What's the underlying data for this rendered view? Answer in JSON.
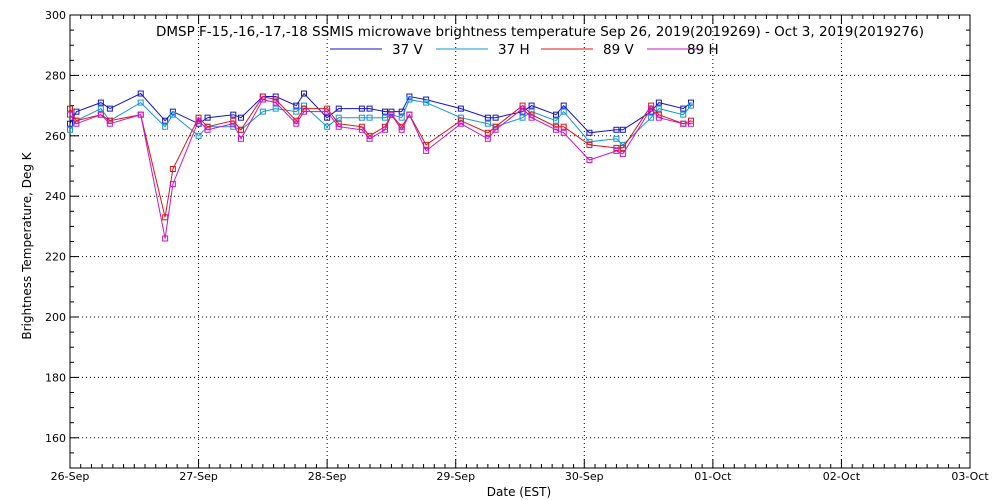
{
  "chart_data": {
    "type": "line",
    "title": "DMSP F-15,-16,-17,-18 SSMIS microwave brightness temperature Sep 26, 2019(2019269) - Oct  3, 2019(2019276)",
    "xlabel": "Date (EST)",
    "ylabel": "Brightness Temperature, Deg K",
    "xlim": [
      0,
      7
    ],
    "ylim": [
      150,
      300
    ],
    "xtick_values": [
      0,
      1,
      2,
      3,
      4,
      5,
      6,
      7
    ],
    "xtick_labels": [
      "26-Sep",
      "27-Sep",
      "28-Sep",
      "29-Sep",
      "30-Sep",
      "01-Oct",
      "02-Oct",
      "03-Oct"
    ],
    "yticks": [
      160,
      180,
      200,
      220,
      240,
      260,
      280,
      300
    ],
    "grid": true,
    "legend_position": "top-center",
    "x_units": "days since 26-Sep 00:00 EST",
    "series": [
      {
        "name": "37 V",
        "color": "#1414c8",
        "x": [
          0.0,
          0.05,
          0.24,
          0.31,
          0.55,
          0.74,
          0.8,
          1.0,
          1.07,
          1.27,
          1.33,
          1.5,
          1.6,
          1.76,
          1.82,
          2.0,
          2.09,
          2.27,
          2.33,
          2.45,
          2.5,
          2.58,
          2.64,
          2.77,
          3.04,
          3.25,
          3.31,
          3.52,
          3.59,
          3.78,
          3.84,
          4.04,
          4.25,
          4.3,
          4.52,
          4.58,
          4.77,
          4.83
        ],
        "y": [
          264,
          268,
          271,
          269,
          274,
          265,
          268,
          264,
          266,
          267,
          266,
          273,
          273,
          270,
          274,
          266,
          269,
          269,
          269,
          268,
          268,
          268,
          273,
          272,
          269,
          266,
          266,
          268,
          270,
          267,
          270,
          261,
          262,
          262,
          268,
          271,
          269,
          271
        ]
      },
      {
        "name": "37 H",
        "color": "#1496d2",
        "x": [
          0.0,
          0.05,
          0.24,
          0.31,
          0.55,
          0.74,
          0.8,
          1.0,
          1.07,
          1.27,
          1.33,
          1.5,
          1.6,
          1.76,
          1.82,
          2.0,
          2.09,
          2.27,
          2.33,
          2.45,
          2.5,
          2.58,
          2.64,
          2.77,
          3.04,
          3.25,
          3.31,
          3.52,
          3.59,
          3.78,
          3.84,
          4.04,
          4.25,
          4.3,
          4.52,
          4.58,
          4.77,
          4.83
        ],
        "y": [
          262,
          265,
          269,
          265,
          271,
          263,
          267,
          260,
          263,
          263,
          262,
          268,
          269,
          268,
          270,
          263,
          266,
          266,
          266,
          266,
          267,
          266,
          272,
          271,
          266,
          264,
          263,
          266,
          268,
          265,
          268,
          258,
          259,
          257,
          266,
          269,
          267,
          270
        ]
      },
      {
        "name": "89 V",
        "color": "#dc1414",
        "x": [
          0.0,
          0.05,
          0.24,
          0.31,
          0.55,
          0.74,
          0.8,
          1.0,
          1.07,
          1.27,
          1.33,
          1.5,
          1.6,
          1.76,
          1.82,
          2.0,
          2.09,
          2.27,
          2.33,
          2.45,
          2.5,
          2.58,
          2.64,
          2.77,
          3.04,
          3.25,
          3.31,
          3.52,
          3.59,
          3.78,
          3.84,
          4.04,
          4.25,
          4.3,
          4.52,
          4.58,
          4.77,
          4.83
        ],
        "y": [
          269,
          265,
          267,
          265,
          267,
          233,
          249,
          266,
          263,
          265,
          262,
          273,
          272,
          265,
          269,
          269,
          264,
          263,
          260,
          263,
          267,
          263,
          267,
          257,
          265,
          261,
          263,
          270,
          267,
          263,
          263,
          257,
          256,
          256,
          270,
          267,
          264,
          265
        ]
      },
      {
        "name": "89 H",
        "color": "#c814c8",
        "x": [
          0.0,
          0.05,
          0.24,
          0.31,
          0.55,
          0.74,
          0.8,
          1.0,
          1.07,
          1.27,
          1.33,
          1.5,
          1.6,
          1.76,
          1.82,
          2.0,
          2.09,
          2.27,
          2.33,
          2.45,
          2.5,
          2.58,
          2.64,
          2.77,
          3.04,
          3.25,
          3.31,
          3.52,
          3.59,
          3.78,
          3.84,
          4.04,
          4.25,
          4.3,
          4.52,
          4.58,
          4.77,
          4.83
        ],
        "y": [
          267,
          264,
          267,
          264,
          267,
          226,
          244,
          265,
          262,
          264,
          259,
          272,
          271,
          264,
          268,
          268,
          263,
          262,
          259,
          262,
          267,
          262,
          267,
          255,
          264,
          259,
          262,
          269,
          266,
          262,
          261,
          252,
          255,
          254,
          269,
          266,
          264,
          264
        ]
      }
    ]
  }
}
